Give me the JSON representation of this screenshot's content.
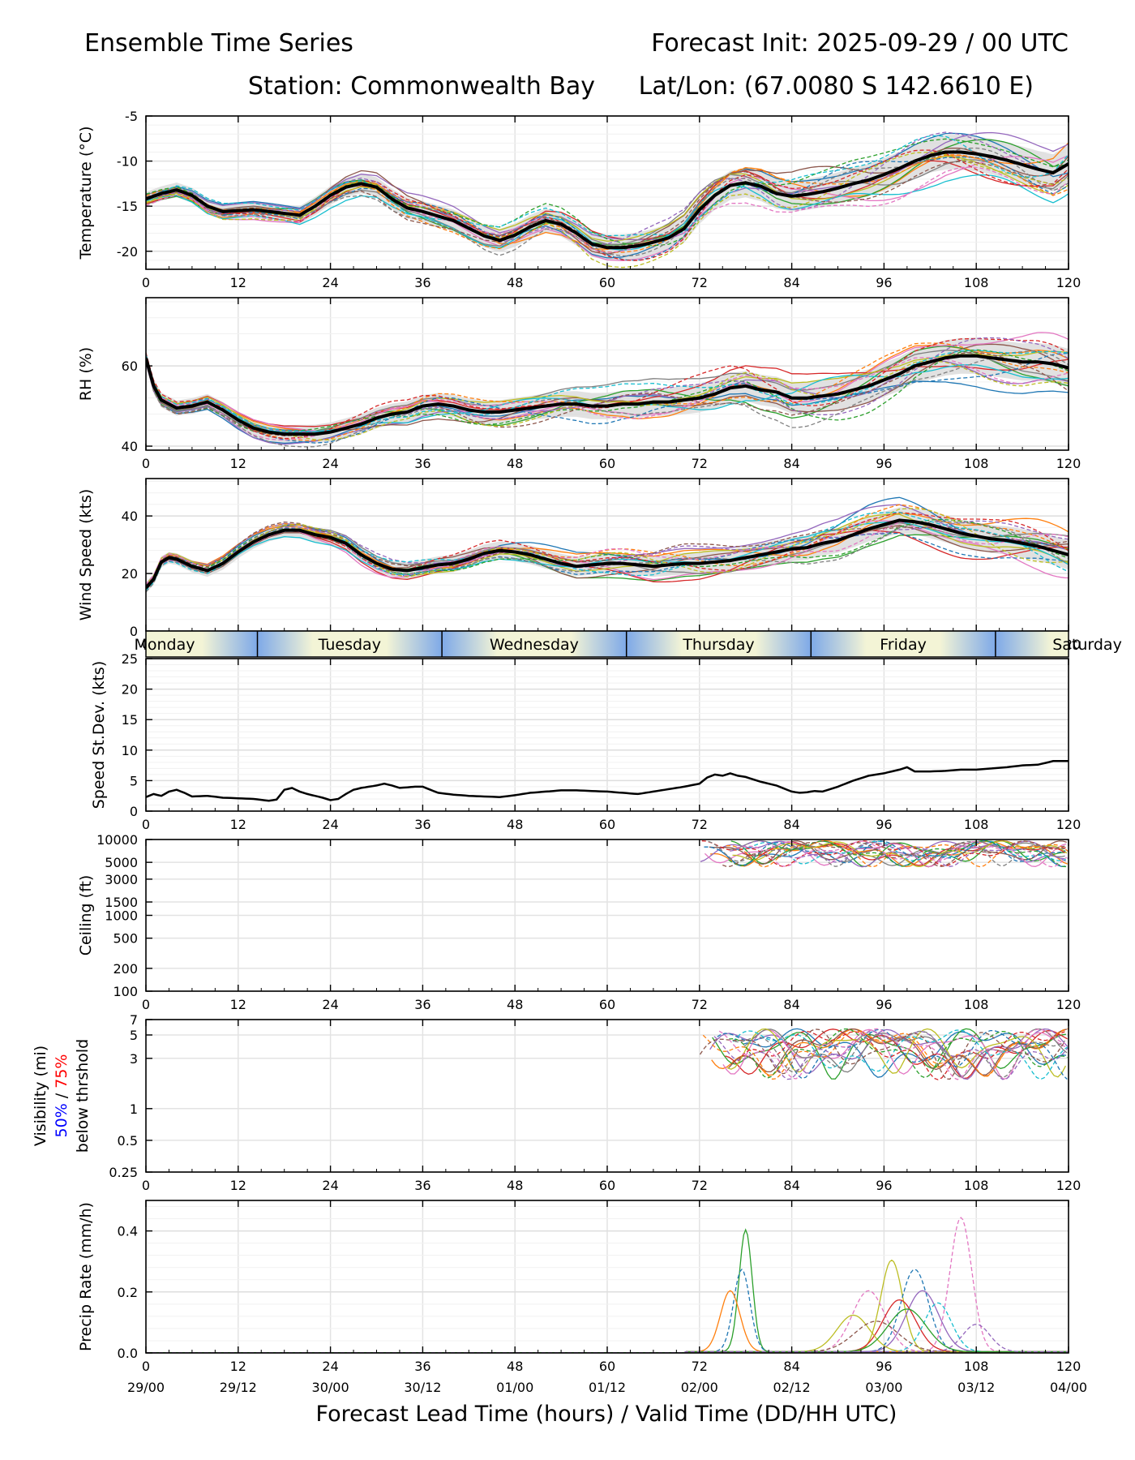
{
  "header": {
    "title_left": "Ensemble Time Series",
    "title_right": "Forecast Init: 2025-09-29 / 00 UTC",
    "station": "Station: Commonwealth Bay",
    "latlon": "Lat/Lon: (67.0080 S 142.6610 E)"
  },
  "xaxis": {
    "lead_ticks": [
      "0",
      "12",
      "24",
      "36",
      "48",
      "60",
      "72",
      "84",
      "96",
      "108",
      "120"
    ],
    "valid_ticks": [
      "29/00",
      "29/12",
      "30/00",
      "30/12",
      "01/00",
      "01/12",
      "02/00",
      "02/12",
      "03/00",
      "03/12",
      "04/00"
    ],
    "label": "Forecast Lead Time (hours) / Valid Time (DD/HH UTC)",
    "range": [
      0,
      120
    ]
  },
  "day_band": {
    "days": [
      "Monday",
      "Tuesday",
      "Wednesday",
      "Thursday",
      "Friday",
      "Saturday"
    ],
    "day_starts": [
      -9.5,
      14.5,
      38.5,
      62.5,
      86.5,
      110.5
    ],
    "light_color": "#f3f4d6",
    "dark_color": "#7ea9e8"
  },
  "colors": {
    "members": [
      "#1f77b4",
      "#ff7f0e",
      "#2ca02c",
      "#d62728",
      "#9467bd",
      "#8c564b",
      "#e377c2",
      "#7f7f7f",
      "#bcbd22",
      "#17becf"
    ],
    "mean": "#000000",
    "spread": "#d9d9d9",
    "vis_blue": "#0000ff",
    "vis_red": "#ff0000"
  },
  "chart_data": [
    {
      "type": "line",
      "id": "temp",
      "ylabel": "Temperature (°C)",
      "ylim": [
        -22,
        -5
      ],
      "yticks": [
        "-5",
        "-10",
        "-15",
        "-20"
      ],
      "mean": {
        "x": [
          0,
          2,
          4,
          6,
          8,
          10,
          14,
          18,
          20,
          22,
          24,
          26,
          28,
          30,
          32,
          34,
          36,
          40,
          44,
          46,
          48,
          50,
          52,
          54,
          56,
          58,
          60,
          62,
          64,
          66,
          68,
          70,
          72,
          74,
          76,
          78,
          80,
          82,
          84,
          86,
          88,
          90,
          92,
          94,
          96,
          98,
          100,
          102,
          104,
          106,
          108,
          110,
          112,
          114,
          116,
          118,
          120
        ],
        "y": [
          -14.2,
          -13.6,
          -13.2,
          -13.8,
          -15.0,
          -15.6,
          -15.4,
          -15.8,
          -16.0,
          -15.0,
          -13.8,
          -12.9,
          -12.5,
          -12.9,
          -14.2,
          -15.2,
          -15.6,
          -16.6,
          -18.3,
          -18.8,
          -18.2,
          -17.3,
          -16.6,
          -17.0,
          -18.0,
          -19.2,
          -19.6,
          -19.6,
          -19.4,
          -19.0,
          -18.5,
          -17.5,
          -15.4,
          -13.8,
          -12.7,
          -12.4,
          -12.8,
          -13.6,
          -13.9,
          -13.7,
          -13.4,
          -13.0,
          -12.5,
          -12.1,
          -11.5,
          -10.8,
          -10.0,
          -9.4,
          -9.0,
          -9.0,
          -9.2,
          -9.5,
          -9.9,
          -10.4,
          -10.9,
          -11.3,
          -10.3
        ]
      },
      "member_spread": 1.3
    },
    {
      "type": "line",
      "id": "rh",
      "ylabel": "RH (%)",
      "ylim": [
        39,
        77
      ],
      "yticks": [
        "40",
        "60"
      ],
      "mean": {
        "x": [
          0,
          1,
          2,
          4,
          6,
          8,
          10,
          12,
          14,
          16,
          18,
          20,
          22,
          24,
          26,
          28,
          30,
          32,
          34,
          36,
          38,
          40,
          42,
          44,
          46,
          48,
          50,
          52,
          54,
          56,
          58,
          60,
          62,
          64,
          66,
          68,
          70,
          72,
          74,
          76,
          78,
          80,
          82,
          84,
          86,
          88,
          90,
          92,
          94,
          96,
          98,
          100,
          102,
          104,
          106,
          108,
          110,
          112,
          114,
          116,
          118,
          120
        ],
        "y": [
          62,
          55,
          51.5,
          49.5,
          50,
          51,
          49,
          46.5,
          44.5,
          43.5,
          43,
          43,
          43,
          43.5,
          44.5,
          45.5,
          47,
          48,
          48.5,
          50,
          50.5,
          50,
          49,
          48.5,
          48.5,
          49,
          49.5,
          50,
          50.5,
          50.5,
          50,
          50,
          50.5,
          50.5,
          51,
          51,
          51.5,
          52,
          53,
          54.5,
          55,
          54,
          53.5,
          52,
          52,
          52.5,
          53,
          54,
          55,
          56.5,
          58,
          60,
          61,
          62,
          62.5,
          62.5,
          62,
          61.5,
          61,
          61,
          60.5,
          59.5
        ]
      },
      "member_spread": 3.0
    },
    {
      "type": "line",
      "id": "wind",
      "ylabel": "Wind Speed (kts)",
      "ylim": [
        0,
        53
      ],
      "yticks": [
        "0",
        "20",
        "40"
      ],
      "mean": {
        "x": [
          0,
          1,
          2,
          3,
          4,
          6,
          8,
          10,
          12,
          14,
          16,
          18,
          20,
          22,
          24,
          26,
          28,
          30,
          32,
          34,
          36,
          38,
          40,
          42,
          44,
          46,
          48,
          50,
          52,
          54,
          56,
          58,
          60,
          62,
          64,
          66,
          68,
          70,
          72,
          74,
          76,
          78,
          80,
          82,
          84,
          86,
          88,
          90,
          92,
          94,
          96,
          98,
          100,
          102,
          104,
          106,
          108,
          110,
          112,
          114,
          116,
          118,
          120
        ],
        "y": [
          15,
          18,
          24,
          25.5,
          25,
          22.5,
          21,
          23.5,
          27.5,
          31,
          33.5,
          35,
          35,
          33.5,
          32.5,
          30.5,
          26.5,
          23.5,
          21.5,
          21,
          22,
          23,
          23.5,
          25,
          27,
          28,
          27.5,
          26.5,
          25,
          23.5,
          22.5,
          23,
          23.5,
          23.5,
          23,
          22.5,
          23,
          23.5,
          23.5,
          24,
          24.5,
          25.5,
          26.5,
          27.5,
          28.5,
          29,
          30.5,
          31.5,
          33.5,
          35.5,
          37,
          38.5,
          38,
          37,
          35.5,
          34,
          33,
          32,
          31.5,
          30.5,
          29.5,
          28,
          26.5
        ]
      },
      "member_spread": 3.2
    },
    {
      "type": "line",
      "id": "sd",
      "ylabel": "Speed St.Dev. (kts)",
      "ylim": [
        0,
        25
      ],
      "yticks": [
        "0",
        "5",
        "10",
        "15",
        "20",
        "25"
      ],
      "mean": {
        "x": [
          0,
          1,
          2,
          3,
          4,
          5,
          6,
          8,
          10,
          12,
          14,
          16,
          17,
          18,
          19,
          20,
          21,
          22,
          23,
          24,
          25,
          26,
          27,
          28,
          29,
          30,
          31,
          32,
          33,
          34,
          35,
          36,
          38,
          40,
          42,
          44,
          46,
          48,
          50,
          52,
          54,
          56,
          58,
          60,
          62,
          64,
          66,
          68,
          70,
          72,
          73,
          74,
          75,
          76,
          77,
          78,
          80,
          82,
          84,
          85,
          86,
          87,
          88,
          90,
          92,
          94,
          96,
          98,
          99,
          100,
          102,
          104,
          106,
          108,
          110,
          112,
          114,
          116,
          118,
          120
        ],
        "y": [
          2.3,
          2.8,
          2.5,
          3.2,
          3.5,
          3.0,
          2.4,
          2.5,
          2.2,
          2.1,
          2.0,
          1.7,
          1.9,
          3.5,
          3.8,
          3.2,
          2.8,
          2.5,
          2.2,
          1.8,
          2.0,
          2.8,
          3.5,
          3.8,
          4.0,
          4.2,
          4.5,
          4.2,
          3.8,
          3.9,
          4.0,
          4.0,
          3.0,
          2.7,
          2.5,
          2.4,
          2.3,
          2.6,
          3.0,
          3.2,
          3.4,
          3.4,
          3.3,
          3.2,
          3.0,
          2.8,
          3.2,
          3.6,
          4.0,
          4.5,
          5.5,
          6.0,
          5.8,
          6.2,
          5.8,
          5.6,
          4.8,
          4.2,
          3.2,
          3.0,
          3.1,
          3.3,
          3.2,
          4.0,
          5.0,
          5.8,
          6.2,
          6.8,
          7.2,
          6.5,
          6.5,
          6.6,
          6.8,
          6.8,
          7.0,
          7.2,
          7.5,
          7.6,
          8.2,
          8.2
        ]
      },
      "member_spread": 0
    },
    {
      "type": "line",
      "id": "ceiling",
      "ylabel": "Ceiling (ft)",
      "yscale": "log",
      "ylim": [
        100,
        10000
      ],
      "yticks": [
        "10000",
        "5000",
        "3000",
        "1500",
        "1000",
        "500",
        "200",
        "100"
      ],
      "member_start": 72,
      "member_center": 7000,
      "member_amp": 2200
    },
    {
      "type": "line",
      "id": "vis",
      "ylabel": "Visibility (mi)",
      "ylabel_blue": "50%",
      "ylabel_sep": " / ",
      "ylabel_red": "75%",
      "ylabel_line3": "below thrshold",
      "yscale": "log",
      "ylim": [
        0.25,
        7
      ],
      "yticks": [
        "7",
        "5",
        "3",
        "1",
        "0.5",
        "0.25"
      ],
      "member_start": 72,
      "member_center": 3.8,
      "member_amp": 1.6
    },
    {
      "type": "line",
      "id": "precip",
      "ylabel": "Precip Rate (mm/h)",
      "ylim": [
        0,
        0.5
      ],
      "yticks": [
        "0.0",
        "0.2",
        "0.4"
      ],
      "peaks": [
        {
          "c": 78.0,
          "w": 1.2,
          "h": 0.4,
          "m": 2
        },
        {
          "c": 77.5,
          "w": 1.5,
          "h": 0.27,
          "m": 0
        },
        {
          "c": 76.0,
          "w": 1.8,
          "h": 0.2,
          "m": 1
        },
        {
          "c": 106.0,
          "w": 2.0,
          "h": 0.44,
          "m": 6
        },
        {
          "c": 97.0,
          "w": 2.0,
          "h": 0.3,
          "m": 8
        },
        {
          "c": 100.0,
          "w": 2.5,
          "h": 0.27,
          "m": 0
        },
        {
          "c": 101.0,
          "w": 3.0,
          "h": 0.2,
          "m": 4
        },
        {
          "c": 94.0,
          "w": 3.0,
          "h": 0.2,
          "m": 6
        },
        {
          "c": 98.0,
          "w": 3.0,
          "h": 0.17,
          "m": 3
        },
        {
          "c": 103.0,
          "w": 2.5,
          "h": 0.16,
          "m": 9
        },
        {
          "c": 92.0,
          "w": 3.0,
          "h": 0.12,
          "m": 8
        },
        {
          "c": 95.0,
          "w": 4.0,
          "h": 0.1,
          "m": 5
        },
        {
          "c": 99.0,
          "w": 3.5,
          "h": 0.14,
          "m": 2
        },
        {
          "c": 108.0,
          "w": 2.5,
          "h": 0.09,
          "m": 4
        }
      ]
    }
  ]
}
